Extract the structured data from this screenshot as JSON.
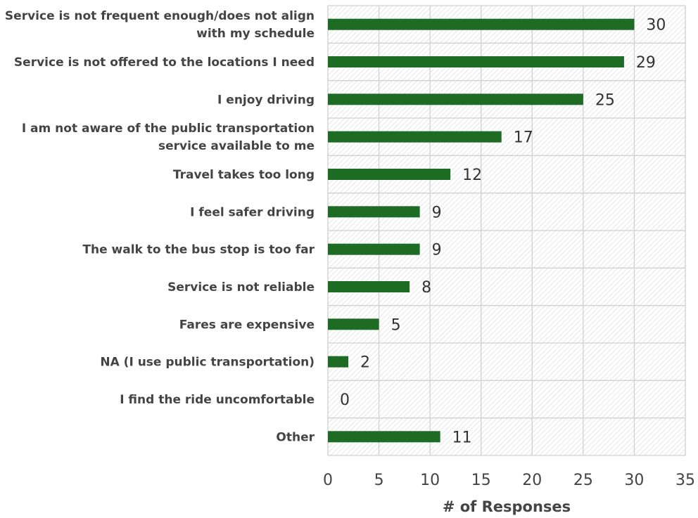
{
  "chart_data": {
    "type": "bar",
    "orientation": "horizontal",
    "categories": [
      [
        "Service is not frequent enough/does not align",
        "with my schedule"
      ],
      [
        "Service is not offered to the locations I need"
      ],
      [
        "I enjoy driving"
      ],
      [
        "I am not aware of the public transportation",
        "service available to me"
      ],
      [
        "Travel takes too long"
      ],
      [
        "I feel safer driving"
      ],
      [
        "The walk to the bus stop is too far"
      ],
      [
        "Service is not reliable"
      ],
      [
        "Fares are expensive"
      ],
      [
        "NA (I use public transportation)"
      ],
      [
        "I find the ride uncomfortable"
      ],
      [
        "Other"
      ]
    ],
    "values": [
      30,
      29,
      25,
      17,
      12,
      9,
      9,
      8,
      5,
      2,
      0,
      11
    ],
    "xlim": [
      0,
      35
    ],
    "xticks": [
      0,
      5,
      10,
      15,
      20,
      25,
      30,
      35
    ],
    "xlabel": "# of Responses",
    "title": "",
    "grid": true,
    "bar_color": "#1e6b24",
    "gridline_color": "#d0d0d0"
  }
}
